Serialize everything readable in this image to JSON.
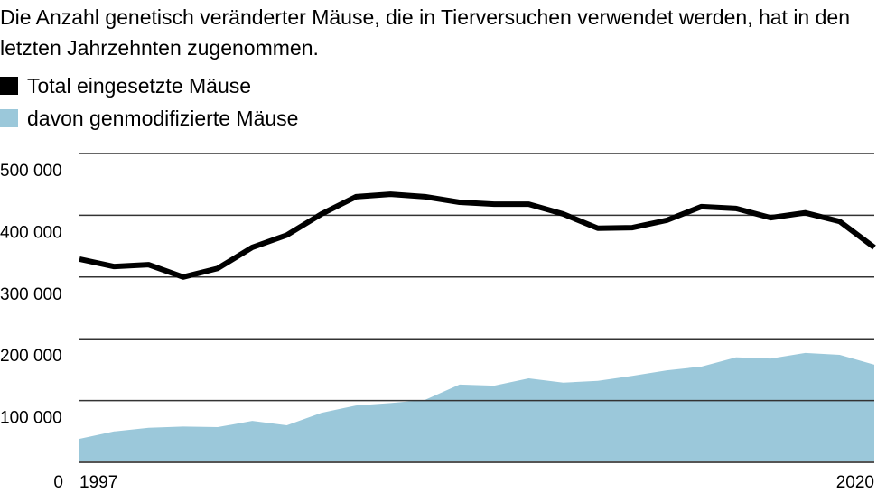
{
  "title": "Die Anzahl genetisch veränderter Mäuse, die in Tierversuchen verwendet werden, hat in den letzten Jahrzehnten zugenommen.",
  "legend": [
    {
      "label": "Total eingesetzte Mäuse",
      "color": "#000000"
    },
    {
      "label": "davon genmodifizierte Mäuse",
      "color": "#9bc8da"
    }
  ],
  "chart_data": {
    "type": "line",
    "x": [
      1997,
      1998,
      1999,
      2000,
      2001,
      2002,
      2003,
      2004,
      2005,
      2006,
      2007,
      2008,
      2009,
      2010,
      2011,
      2012,
      2013,
      2014,
      2015,
      2016,
      2017,
      2018,
      2019,
      2020
    ],
    "series": [
      {
        "name": "Total eingesetzte Mäuse",
        "type": "line",
        "color": "#000000",
        "values": [
          329000,
          317000,
          320000,
          300000,
          314000,
          348000,
          368000,
          402000,
          430000,
          434000,
          430000,
          421000,
          418000,
          418000,
          402000,
          379000,
          380000,
          392000,
          414000,
          411000,
          396000,
          404000,
          390000,
          348000
        ]
      },
      {
        "name": "davon genmodifizierte Mäuse",
        "type": "area",
        "color": "#9bc8da",
        "values": [
          38000,
          50000,
          56000,
          58000,
          57000,
          67000,
          60000,
          80000,
          92000,
          96000,
          101000,
          126000,
          124000,
          136000,
          129000,
          132000,
          140000,
          149000,
          155000,
          170000,
          168000,
          177000,
          174000,
          158000
        ]
      }
    ],
    "ylim": [
      0,
      500000
    ],
    "yticks": [
      0,
      100000,
      200000,
      300000,
      400000,
      500000
    ],
    "ytick_labels": [
      "0",
      "100 000",
      "200 000",
      "300 000",
      "400 000",
      "500 000"
    ],
    "xtick_labels": [
      "1997",
      "2020"
    ],
    "grid": true,
    "legend_position": "top-left"
  }
}
